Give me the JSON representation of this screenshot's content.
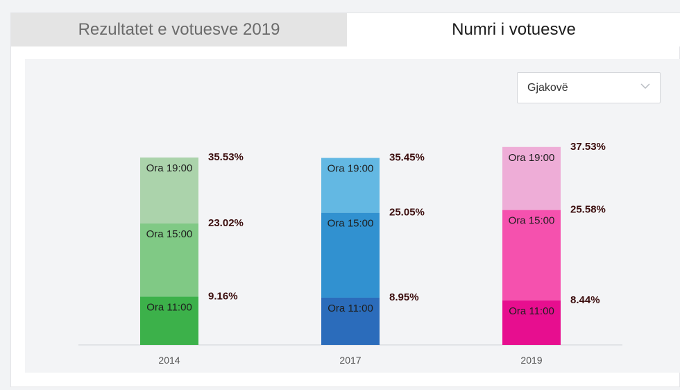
{
  "tabs": [
    {
      "label": "Rezultatet e votuesve 2019",
      "active": false
    },
    {
      "label": "Numri i votuesve",
      "active": true
    }
  ],
  "filter": {
    "selected": "Gjakovë"
  },
  "chart_data": {
    "type": "bar",
    "stacked": true,
    "categories": [
      "2014",
      "2017",
      "2019"
    ],
    "series": [
      {
        "name": "Ora 11:00",
        "values": [
          9.16,
          8.95,
          8.44
        ]
      },
      {
        "name": "Ora 15:00",
        "values": [
          23.02,
          25.05,
          25.58
        ]
      },
      {
        "name": "Ora 19:00",
        "values": [
          35.53,
          35.45,
          37.53
        ]
      }
    ],
    "value_labels": [
      [
        "9.16%",
        "23.02%",
        "35.53%"
      ],
      [
        "8.95%",
        "25.05%",
        "35.45%"
      ],
      [
        "8.44%",
        "25.58%",
        "37.53%"
      ]
    ],
    "colors": [
      [
        "#3cb14a",
        "#80c985",
        "#abd3ab"
      ],
      [
        "#2b6cbb",
        "#3191d0",
        "#63b8e3"
      ],
      [
        "#e70e8f",
        "#f551ae",
        "#eeadd7"
      ]
    ],
    "xlabel": "",
    "ylabel": "",
    "grid": false,
    "legend": "none"
  }
}
